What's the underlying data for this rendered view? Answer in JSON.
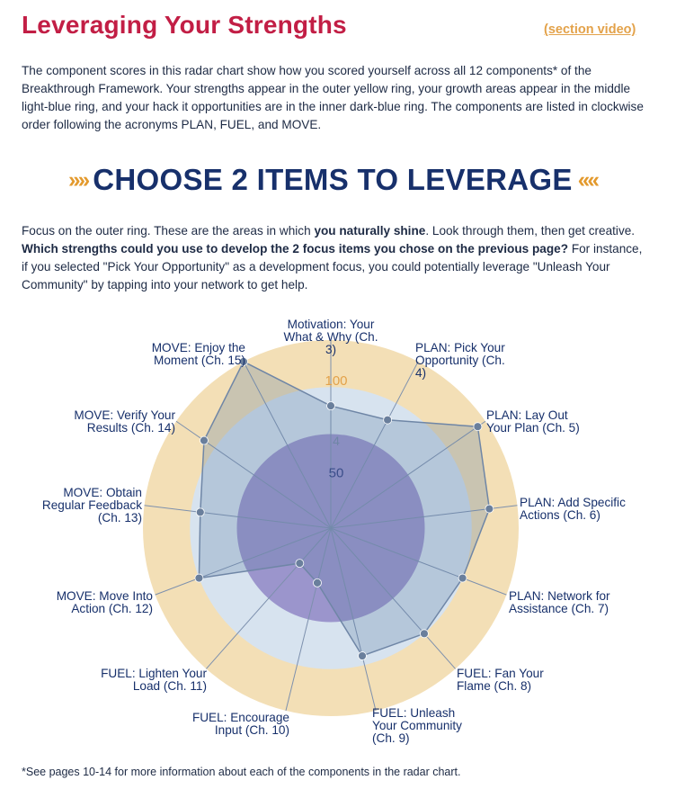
{
  "header": {
    "title": "Leveraging Your Strengths",
    "video_link": "(section video)"
  },
  "intro": "The component scores in this radar chart show how you scored yourself across all 12 components* of the Breakthrough Framework. Your strengths appear in the outer yellow ring, your growth areas appear in the middle light-blue ring, and your hack it opportunities are in the inner dark-blue ring. The components are listed in clockwise order following the acronyms PLAN, FUEL, and MOVE.",
  "banner": {
    "chevrons_left": "››››",
    "title": "CHOOSE 2 ITEMS TO LEVERAGE",
    "chevrons_right": "‹‹‹‹"
  },
  "focus": {
    "part1": "Focus on the outer ring. These are the areas in which ",
    "bold1": "you naturally shine",
    "part2": ". Look through them, then get creative. ",
    "bold2": "Which strengths could you use to develop the 2 focus items you chose on the previous page?",
    "part3": " For instance, if you selected \"Pick Your Opportunity\" as a development focus, you could potentially leverage \"Unleash Your Community\" by tapping into your network to get help."
  },
  "chart_data": {
    "type": "radar",
    "title": "",
    "range": [
      0,
      100
    ],
    "rings": [
      {
        "name": "hack it opportunities",
        "min": 0,
        "max": 50,
        "color": "#9b95cc"
      },
      {
        "name": "growth areas",
        "min": 50,
        "max": 75,
        "color": "#d7e3ef"
      },
      {
        "name": "strengths",
        "min": 75,
        "max": 100,
        "color": "#f3dfb6"
      }
    ],
    "tick_labels": [
      "50",
      "100"
    ],
    "axis_text": "4",
    "categories": [
      [
        "Motivation: Your",
        "What & Why (Ch.",
        "3)"
      ],
      [
        "PLAN: Pick Your",
        "Opportunity (Ch.",
        "4)"
      ],
      [
        "PLAN: Lay Out",
        "Your Plan (Ch. 5)"
      ],
      [
        "PLAN: Add Specific",
        "Actions (Ch. 6)"
      ],
      [
        "PLAN: Network for",
        "Assistance (Ch. 7)"
      ],
      [
        "FUEL: Fan Your",
        "Flame (Ch. 8)"
      ],
      [
        "FUEL: Unleash",
        "Your Community",
        "(Ch. 9)"
      ],
      [
        "FUEL: Encourage",
        "Input (Ch. 10)"
      ],
      [
        "FUEL: Lighten Your",
        "Load (Ch. 11)"
      ],
      [
        "MOVE: Move Into",
        "Action (Ch. 12)"
      ],
      [
        "MOVE: Obtain",
        "Regular Feedback",
        "(Ch. 13)"
      ],
      [
        "MOVE: Verify Your",
        "Results (Ch. 14)"
      ],
      [
        "MOVE: Enjoy the",
        "Moment (Ch. 15)"
      ]
    ],
    "series": [
      {
        "name": "Your scores",
        "values": [
          65,
          65,
          95,
          85,
          75,
          75,
          70,
          30,
          25,
          75,
          70,
          82,
          100
        ]
      }
    ]
  },
  "footnote": "*See pages 10-14 for more information about each of the components in the radar chart."
}
